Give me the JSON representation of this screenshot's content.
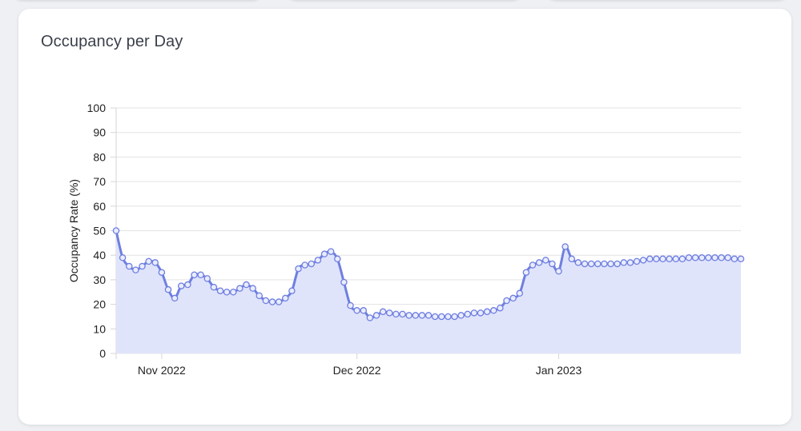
{
  "card": {
    "title": "Occupancy per Day"
  },
  "chart_data": {
    "type": "area",
    "title": "Occupancy per Day",
    "xlabel": "",
    "ylabel": "Occupancy Rate (%)",
    "ylim": [
      0,
      100
    ],
    "yticks": [
      0,
      10,
      20,
      30,
      40,
      50,
      60,
      70,
      80,
      90,
      100
    ],
    "x_start": "2022-10-25",
    "x_step_days": 1,
    "xticks": [
      {
        "date": "2022-11-01",
        "label": "Nov 2022"
      },
      {
        "date": "2022-12-01",
        "label": "Dec 2022"
      },
      {
        "date": "2023-01-01",
        "label": "Jan 2023"
      }
    ],
    "grid": true,
    "line_color": "#6f7fe0",
    "fill_color": "#e0e4fb",
    "point_fill": "#e9ecfd",
    "series": [
      {
        "values": [
          50,
          39,
          35.5,
          34,
          35.5,
          37.5,
          37,
          33,
          26,
          22.5,
          27.5,
          28,
          32,
          32,
          30.5,
          27,
          25.5,
          25,
          25,
          26.5,
          28,
          26.5,
          23.5,
          21.5,
          21,
          21,
          22.5,
          25.5,
          34.5,
          36,
          36.5,
          38,
          40.5,
          41.5,
          38.5,
          29,
          19.5,
          17.5,
          17.5,
          14.5,
          15.5,
          17,
          16.5,
          16,
          16,
          15.5,
          15.5,
          15.5,
          15.5,
          15,
          15,
          15,
          15,
          15.5,
          16,
          16.5,
          16.5,
          17,
          17.5,
          18.5,
          21.5,
          22.5,
          24.5,
          33,
          36,
          37,
          38,
          36.5,
          33.5,
          43.5,
          38.5,
          37,
          36.5,
          36.5,
          36.5,
          36.5,
          36.5,
          36.5,
          37,
          37,
          37.5,
          38,
          38.5,
          38.5,
          38.5,
          38.5,
          38.5,
          38.5,
          39,
          39,
          39,
          39,
          39,
          39,
          39,
          38.5,
          38.5
        ]
      }
    ]
  }
}
